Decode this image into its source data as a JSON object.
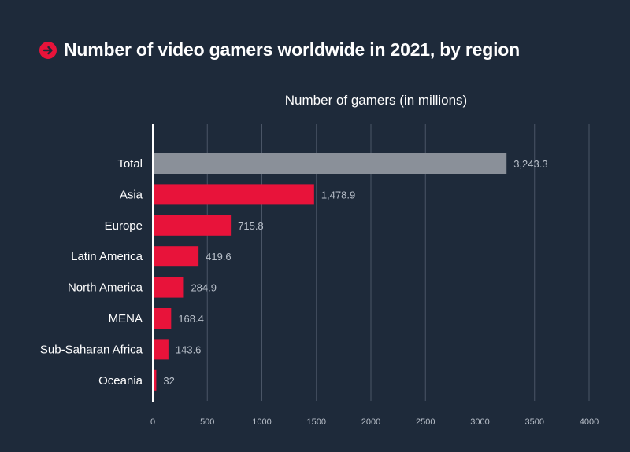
{
  "header": {
    "title": "Number of video gamers worldwide in 2021, by region",
    "icon": "arrow-right-circle-icon"
  },
  "colors": {
    "background": "#1e2a3a",
    "accent": "#e8133a",
    "total_bar": "#8a9099",
    "grid": "#4a5566",
    "label": "#ffffff",
    "value_label": "#b8bfc9",
    "tick_label": "#b8bfc9"
  },
  "chart_data": {
    "type": "bar",
    "orientation": "horizontal",
    "title": "Number of video gamers worldwide in 2021, by region",
    "xlabel": "Number of gamers (in millions)",
    "ylabel": "",
    "categories": [
      "Total",
      "Asia",
      "Europe",
      "Latin America",
      "North America",
      "MENA",
      "Sub-Saharan Africa",
      "Oceania"
    ],
    "values": [
      3243.3,
      1478.9,
      715.8,
      419.6,
      284.9,
      168.4,
      143.6,
      32
    ],
    "value_labels": [
      "3,243.3",
      "1,478.9",
      "715.8",
      "419.6",
      "284.9",
      "168.4",
      "143.6",
      "32"
    ],
    "xlim": [
      0,
      4000
    ],
    "x_ticks": [
      0,
      500,
      1000,
      1500,
      2000,
      2500,
      3000,
      3500,
      4000
    ],
    "grid": true,
    "legend": "none"
  }
}
